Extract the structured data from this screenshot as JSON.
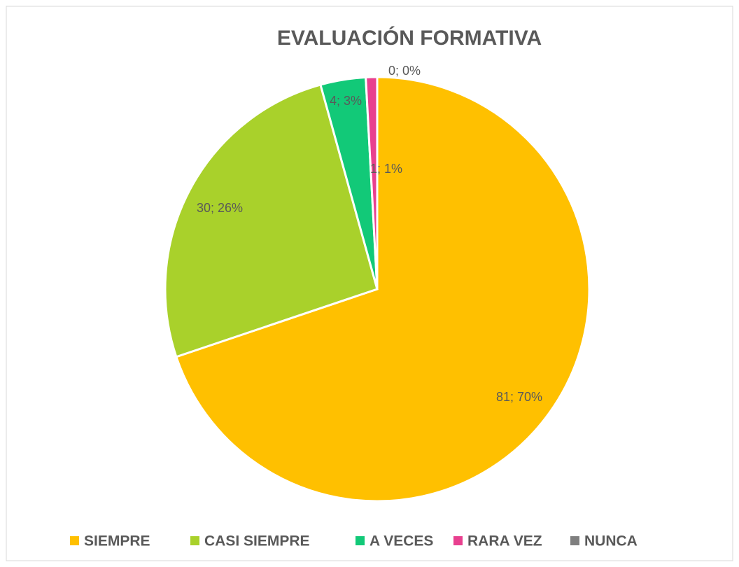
{
  "chart_data": {
    "type": "pie",
    "title": "EVALUACIÓN FORMATIVA",
    "categories": [
      "SIEMPRE",
      "CASI SIEMPRE",
      "A VECES",
      "RARA VEZ",
      "NUNCA"
    ],
    "values": [
      81,
      30,
      4,
      1,
      0
    ],
    "value_labels": [
      "81; 70%",
      "30; 26%",
      "4; 3%",
      "1; 1%",
      "0; 0%"
    ],
    "colors": [
      "#FFC000",
      "#A9D12B",
      "#12C978",
      "#E8408F",
      "#7F7F7F"
    ],
    "legend": "bottom"
  }
}
